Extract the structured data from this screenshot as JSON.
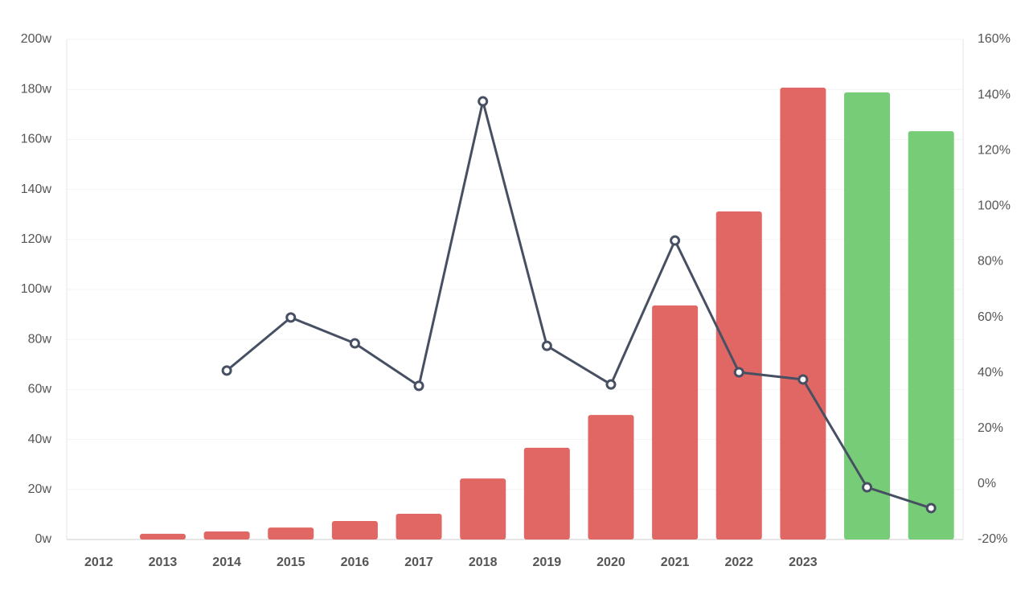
{
  "chart_data": {
    "type": "bar-line",
    "categories": [
      "2012",
      "2013",
      "2014",
      "2015",
      "2016",
      "2017",
      "2018",
      "2019",
      "2020",
      "2021",
      "2022",
      "2023",
      null,
      null
    ],
    "series": [
      {
        "type": "bar",
        "values": [
          0,
          2.3,
          3.2,
          4.8,
          7.4,
          10.3,
          24.4,
          36.7,
          49.8,
          93.6,
          131.2,
          180.7,
          178.8,
          163.3
        ],
        "colors": [
          "#e06763",
          "#e06763",
          "#e06763",
          "#e06763",
          "#e06763",
          "#e06763",
          "#e06763",
          "#e06763",
          "#e06763",
          "#e06763",
          "#e06763",
          "#e06763",
          "#77cc77",
          "#77cc77"
        ]
      },
      {
        "type": "line",
        "axis": "y2",
        "color": "#475063",
        "values": [
          null,
          null,
          40.8,
          59.9,
          50.6,
          35.3,
          137.7,
          49.7,
          35.8,
          87.6,
          40.2,
          37.6,
          -1.2,
          -8.7
        ]
      }
    ],
    "ylim": [
      0,
      200
    ],
    "yticks": [
      {
        "value": 0,
        "label": "0w"
      },
      {
        "value": 20,
        "label": "20w"
      },
      {
        "value": 40,
        "label": "40w"
      },
      {
        "value": 60,
        "label": "60w"
      },
      {
        "value": 80,
        "label": "80w"
      },
      {
        "value": 100,
        "label": "100w"
      },
      {
        "value": 120,
        "label": "120w"
      },
      {
        "value": 140,
        "label": "140w"
      },
      {
        "value": 160,
        "label": "160w"
      },
      {
        "value": 180,
        "label": "180w"
      },
      {
        "value": 200,
        "label": "200w"
      }
    ],
    "y2lim": [
      -20,
      160
    ],
    "y2ticks": [
      {
        "value": -20,
        "label": "-20%"
      },
      {
        "value": 0,
        "label": "0%"
      },
      {
        "value": 20,
        "label": "20%"
      },
      {
        "value": 40,
        "label": "40%"
      },
      {
        "value": 60,
        "label": "60%"
      },
      {
        "value": 80,
        "label": "80%"
      },
      {
        "value": 100,
        "label": "100%"
      },
      {
        "value": 120,
        "label": "120%"
      },
      {
        "value": 140,
        "label": "140%"
      },
      {
        "value": 160,
        "label": "160%"
      }
    ],
    "grid": true
  }
}
